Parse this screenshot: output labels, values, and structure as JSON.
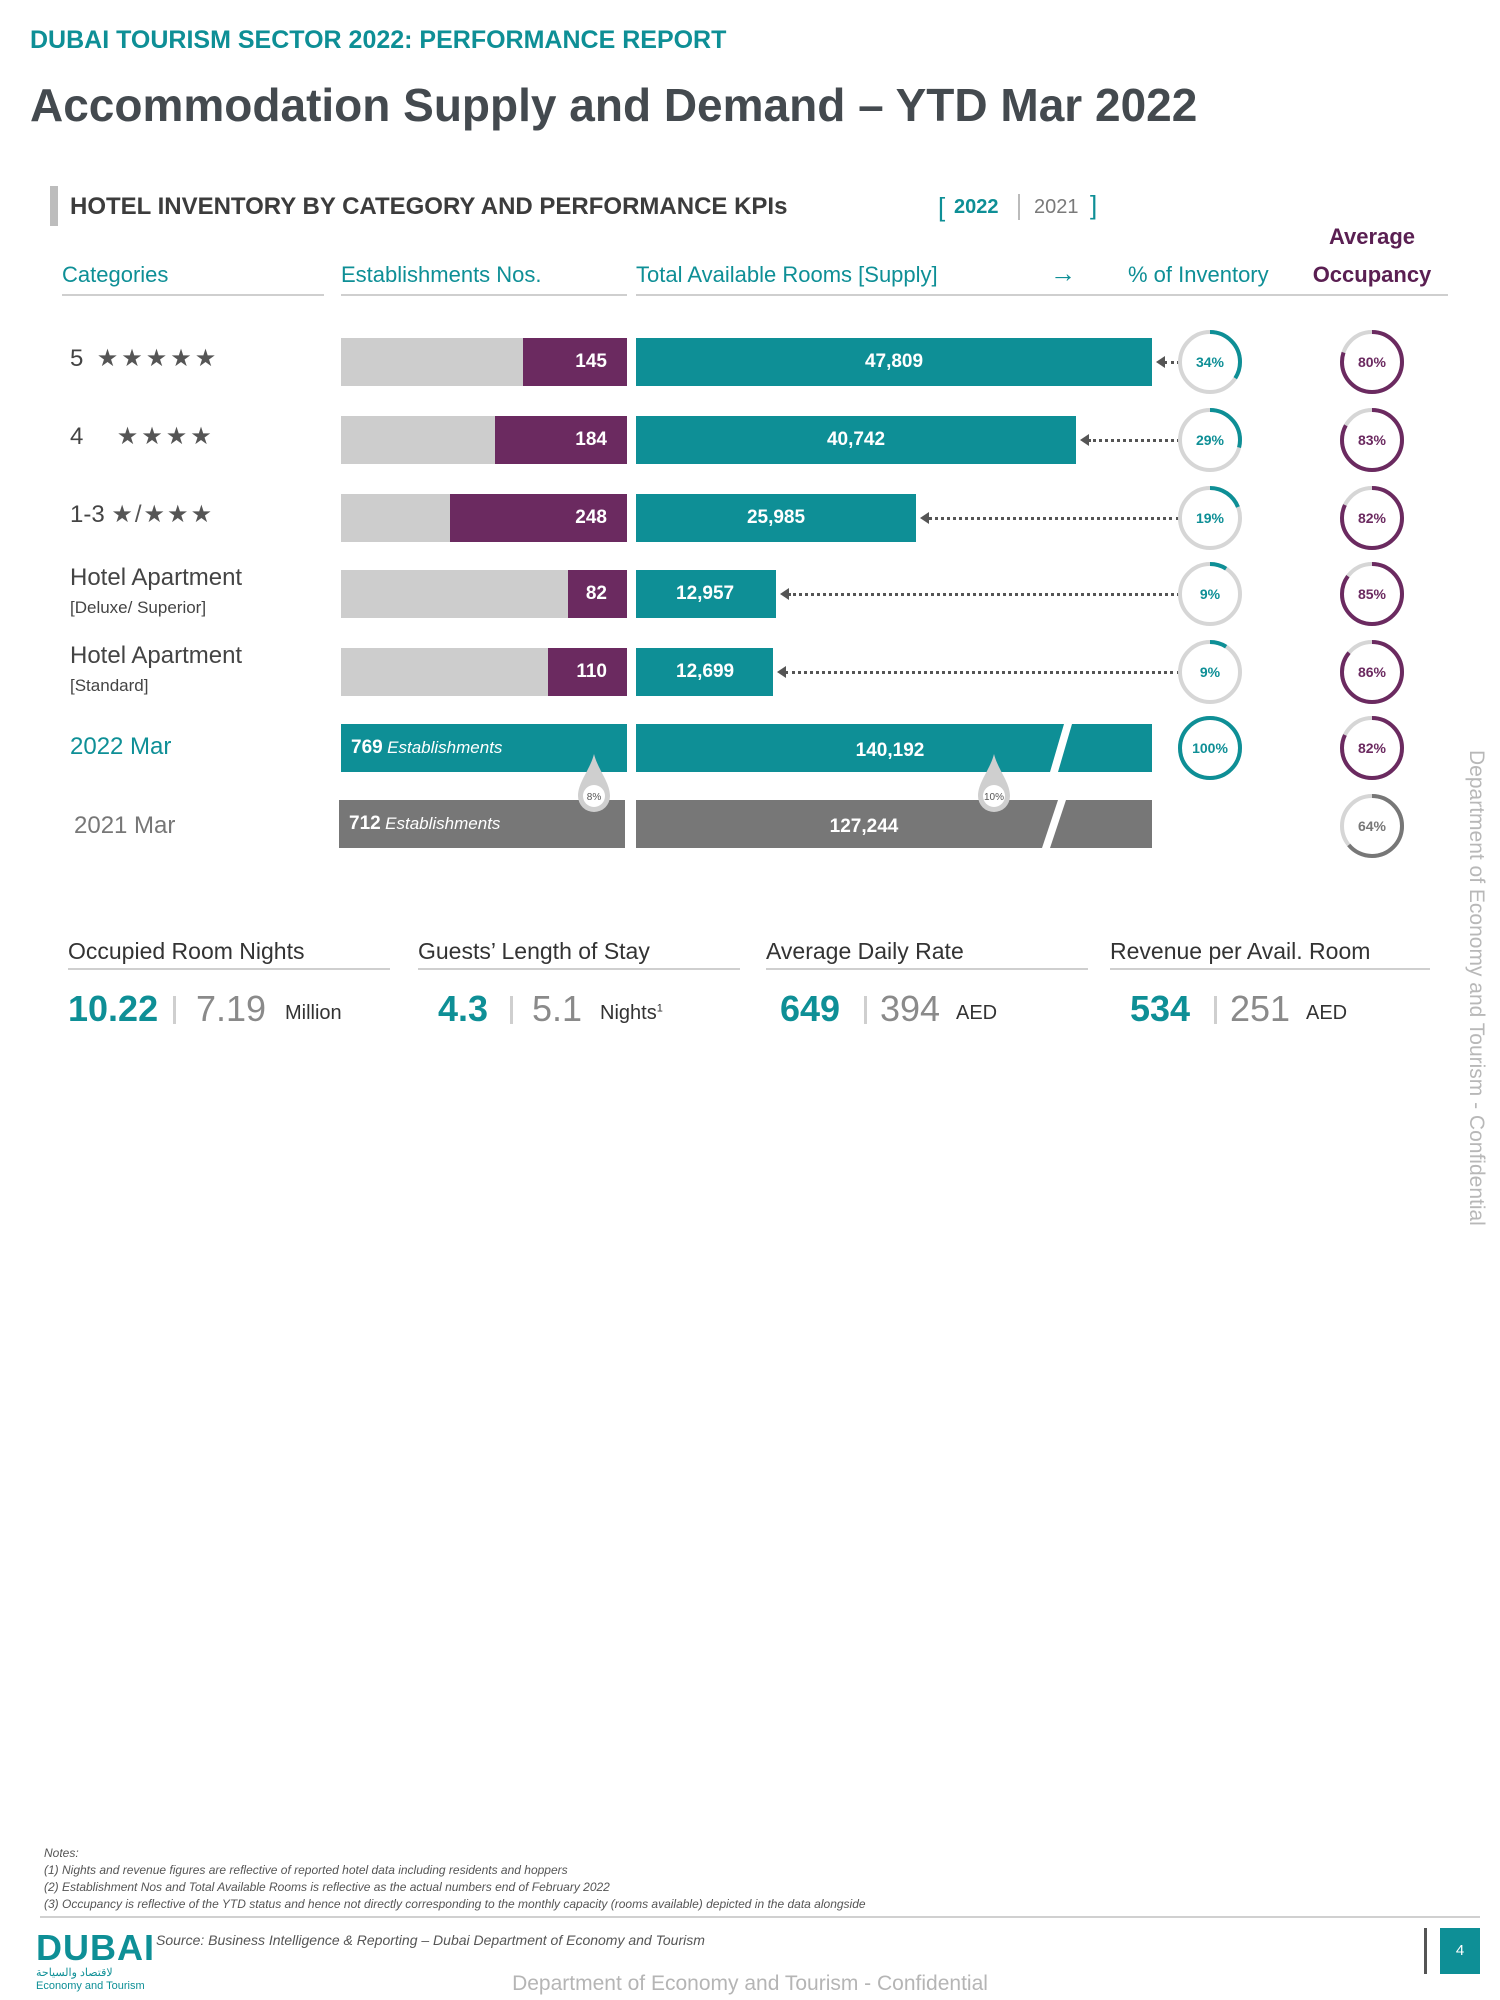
{
  "header": {
    "report": "DUBAI TOURISM SECTOR 2022: PERFORMANCE REPORT",
    "title": "Accommodation Supply and Demand – YTD Mar 2022"
  },
  "section": {
    "title": "HOTEL INVENTORY BY CATEGORY AND PERFORMANCE KPIs",
    "year_primary": "2022",
    "year_secondary": "2021",
    "bracket_open": "[",
    "bracket_close": "]"
  },
  "columns": {
    "categories": "Categories",
    "establishments": "Establishments Nos.",
    "rooms": "Total Available Rooms [Supply]",
    "arrow": "→",
    "inventory": "% of Inventory",
    "occupancy_line1": "Average",
    "occupancy_line2": "Occupancy"
  },
  "rows": [
    {
      "label": "5",
      "stars": "★★★★★",
      "sub": "",
      "establishments": "145",
      "est_value": 145,
      "rooms": "47,809",
      "room_value": 47809,
      "inventory": "34%",
      "inv_value": 34,
      "occupancy": "80%",
      "occ_value": 80
    },
    {
      "label": "4",
      "stars": "★★★★",
      "sub": "",
      "establishments": "184",
      "est_value": 184,
      "rooms": "40,742",
      "room_value": 40742,
      "inventory": "29%",
      "inv_value": 29,
      "occupancy": "83%",
      "occ_value": 83
    },
    {
      "label": "1-3",
      "stars": "★/★★★",
      "sub": "",
      "establishments": "248",
      "est_value": 248,
      "rooms": "25,985",
      "room_value": 25985,
      "inventory": "19%",
      "inv_value": 19,
      "occupancy": "82%",
      "occ_value": 82
    },
    {
      "label": "Hotel Apartment",
      "stars": "",
      "sub": "[Deluxe/ Superior]",
      "establishments": "82",
      "est_value": 82,
      "rooms": "12,957",
      "room_value": 12957,
      "inventory": "9%",
      "inv_value": 9,
      "occupancy": "85%",
      "occ_value": 85
    },
    {
      "label": "Hotel Apartment",
      "stars": "",
      "sub": "[Standard]",
      "establishments": "110",
      "est_value": 110,
      "rooms": "12,699",
      "room_value": 12699,
      "inventory": "9%",
      "inv_value": 9,
      "occupancy": "86%",
      "occ_value": 86
    }
  ],
  "totals": {
    "y2022": {
      "label": "2022 Mar",
      "establishments_num": "769",
      "establishments_word": "Establishments",
      "rooms": "140,192",
      "inventory": "100%",
      "occupancy": "82%",
      "occ_value": 82
    },
    "y2021": {
      "label": "2021 Mar",
      "establishments_num": "712",
      "establishments_word": "Establishments",
      "rooms": "127,244",
      "occupancy": "64%",
      "occ_value": 64
    },
    "est_growth": "8%",
    "rooms_growth": "10%"
  },
  "kpis": [
    {
      "title": "Occupied Room Nights",
      "v2022": "10.22",
      "v2021": "7.19",
      "unit": "Million",
      "sup": ""
    },
    {
      "title": "Guests’ Length of Stay",
      "v2022": "4.3",
      "v2021": "5.1",
      "unit": "Nights",
      "sup": "1"
    },
    {
      "title": "Average Daily Rate",
      "v2022": "649",
      "v2021": "394",
      "unit": "AED",
      "sup": ""
    },
    {
      "title": "Revenue per Avail. Room",
      "v2022": "534",
      "v2021": "251",
      "unit": "AED",
      "sup": ""
    }
  ],
  "notes": {
    "heading": "Notes:",
    "n1": "(1) Nights and revenue figures are reflective of reported hotel data including residents and hoppers",
    "n2": "(2) Establishment Nos and Total Available Rooms is reflective as the actual numbers end of February 2022",
    "n3": "(3) Occupancy is reflective of the YTD status and hence not directly corresponding to the monthly capacity (rooms available) depicted in the data alongside"
  },
  "footer": {
    "source": "Source: Business Intelligence & Reporting – Dubai Department of Economy and Tourism",
    "page": "4",
    "logo_word": "DUBAI",
    "logo_arabic": "لاقتصاد والسياحة",
    "logo_en": "Economy and Tourism",
    "confidential": "Department of Economy and Tourism - Confidential",
    "side_text": "Department of Economy and Tourism - Confidential"
  },
  "colors": {
    "teal": "#0e8f96",
    "purple": "#6b2a60",
    "grey": "#777777",
    "light_grey": "#cdcdcd"
  }
}
